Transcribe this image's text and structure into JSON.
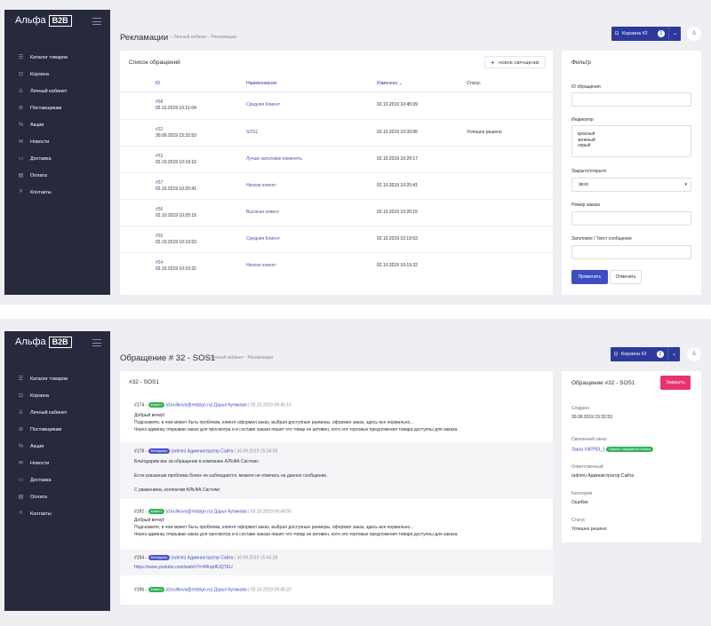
{
  "brand": {
    "name": "Альфа",
    "badge": "B2B"
  },
  "nav": [
    {
      "icon": "☰",
      "label": "Каталог товаров"
    },
    {
      "icon": "⊡",
      "label": "Корзина"
    },
    {
      "icon": "♙",
      "label": "Личный кабинет"
    },
    {
      "icon": "⊘",
      "label": "Поставщикам"
    },
    {
      "icon": "%",
      "label": "Акции"
    },
    {
      "icon": "✉",
      "label": "Новости"
    },
    {
      "icon": "▭",
      "label": "Доставка"
    },
    {
      "icon": "▤",
      "label": "Оплата"
    },
    {
      "icon": "⌾",
      "label": "Контакты"
    }
  ],
  "header": {
    "cart_label": "Корзина #2",
    "cart_count": "2",
    "cart_icon": "cart-icon",
    "user_icon": "user-icon"
  },
  "screen1": {
    "title": "Рекламации",
    "breadcrumb": "Личный кабинет - Рекламации",
    "list_title": "Список обращений",
    "new_button": "НОВОЕ ОБРАЩЕНИЕ",
    "columns": {
      "id": "ID",
      "name": "Наименование",
      "changed": "Изменено",
      "status": "Статус"
    },
    "rows": [
      {
        "id": "#58",
        "created": "02.10.2019 10:21:04",
        "name": "Средняя Клиент",
        "changed": "02.10.2019 10:45:09",
        "status": ""
      },
      {
        "id": "#32",
        "created": "30.09.2019 15:32:53",
        "name": "SOS1",
        "changed": "02.10.2019 10:33:06",
        "status": "Успешно решено"
      },
      {
        "id": "#53",
        "created": "02.10.2019 10:19:10",
        "name": "Лучше заголовок поменять",
        "changed": "02.10.2019 10:29:17",
        "status": ""
      },
      {
        "id": "#57",
        "created": "02.10.2019 10:20:41",
        "name": "Низкая клиент",
        "changed": "02.10.2019 10:20:41",
        "status": ""
      },
      {
        "id": "#56",
        "created": "02.10.2019 10:20:15",
        "name": "Высокая клиент",
        "changed": "02.10.2019 10:20:15",
        "status": ""
      },
      {
        "id": "#55",
        "created": "02.10.2019 10:19:53",
        "name": "Средняя Клиент",
        "changed": "02.10.2019 10:19:53",
        "status": ""
      },
      {
        "id": "#54",
        "created": "02.10.2019 10:19:32",
        "name": "Низкая клиент",
        "changed": "02.10.2019 10:19:32",
        "status": ""
      }
    ],
    "filter": {
      "title": "Фильтр",
      "id_label": "ID обращения",
      "indicator_label": "Индикатор",
      "indicator_options": [
        "красный",
        "зеленый",
        "серый"
      ],
      "closed_label": "Закрыто/открыто",
      "closed_value": "(все)",
      "order_label": "Номер заказа",
      "subject_label": "Заголовок / Текст сообщения",
      "apply": "Применить",
      "cancel": "Отменить"
    }
  },
  "screen2": {
    "title": "Обращение # 32 - SOS1",
    "breadcrumb": "Личный кабинет - Рекламации",
    "thread_title": "#32 - SOS1",
    "messages": [
      {
        "num": "#174 -",
        "tag": "Клиент",
        "email": "(d.kulikova@redsign.ru)",
        "author": "Дарья Куликова",
        "date": "| 03.10.2019 09:45:10",
        "lines": [
          "Добрый вечер!",
          "Подскажите, в чем может быть проблема, клиент оформил заказ, выбрал доступные размеры, оформил заказ, здесь все нормально...",
          "Через админку открываю заказ для просмотра и в составе заказа пишет что товар не активен, хотя эти торговые предложения товара доступны для заказа."
        ]
      },
      {
        "num": "#178 -",
        "tag": "Менеджер",
        "email": "(admin)",
        "author": "Администратор Сайта",
        "date": "| 30.09.2019 15:34:05",
        "lines": [
          "Благодарим вас за обращение в компанию АЛЬФА Системс",
          "",
          "Если указанная проблема более не наблюдается, можете не отвечать на данное сообщение.",
          "",
          "С уважением, коллектив АЛЬФА Системс"
        ]
      },
      {
        "num": "#192 -",
        "tag": "Клиент",
        "email": "(d.kulikova@redsign.ru)",
        "author": "Дарья Куликова",
        "date": "| 03.10.2019 09:44:50",
        "lines": [
          "Добрый вечер!",
          "Подскажите, в чем может быть проблема, клиент оформил заказ, выбрал доступные размеры, оформил заказ, здесь все нормально...",
          "Через админку открываю заказ для просмотра и в составе заказа пишет что товар не активен, хотя эти торговые предложения товара доступны для заказа."
        ]
      },
      {
        "num": "#194 -",
        "tag": "Менеджер",
        "email": "(admin)",
        "author": "Администратор Сайта",
        "date": "| 30.09.2019 15:43:28",
        "lines": [
          "https://www.youtube.com/watch?v=RIrqn8UQTEU"
        ]
      },
      {
        "num": "#196 -",
        "tag": "Клиент",
        "email": "(d.kulikova@redsign.ru)",
        "author": "Дарья Куликова",
        "date": "| 03.10.2019 09:45:22",
        "lines": []
      }
    ],
    "side": {
      "title": "Обращение #32 - SOS1",
      "close": "Закрыть",
      "created_label": "Создано",
      "created_value": "30.09.2019 15:32:53",
      "order_label": "Связанный заказ",
      "order_value": "Заказ #4ЕР83_1",
      "order_tag": "Принят, ожидается оплата",
      "resp_label": "Ответственный",
      "resp_value": "(admin) Администратор Сайта",
      "cat_label": "Категория",
      "cat_value": "Ошибки",
      "status_label": "Статус",
      "status_value": "Успешно решено"
    }
  }
}
